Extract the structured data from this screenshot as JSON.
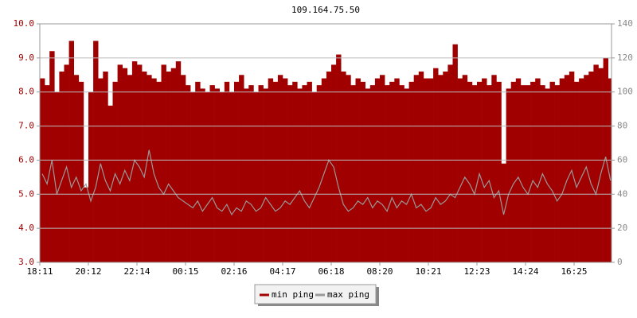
{
  "chart_data": {
    "type": "area",
    "title": "109.164.75.50",
    "categories": [
      "18:11",
      null,
      null,
      null,
      null,
      null,
      null,
      null,
      null,
      null,
      "20:12",
      null,
      null,
      null,
      null,
      null,
      null,
      null,
      null,
      null,
      "22:14",
      null,
      null,
      null,
      null,
      null,
      null,
      null,
      null,
      null,
      "00:15",
      null,
      null,
      null,
      null,
      null,
      null,
      null,
      null,
      null,
      "02:16",
      null,
      null,
      null,
      null,
      null,
      null,
      null,
      null,
      null,
      "04:17",
      null,
      null,
      null,
      null,
      null,
      null,
      null,
      null,
      null,
      "06:18",
      null,
      null,
      null,
      null,
      null,
      null,
      null,
      null,
      null,
      "08:20",
      null,
      null,
      null,
      null,
      null,
      null,
      null,
      null,
      null,
      "10:21",
      null,
      null,
      null,
      null,
      null,
      null,
      null,
      null,
      null,
      "12:23",
      null,
      null,
      null,
      null,
      null,
      null,
      null,
      null,
      null,
      "14:24",
      null,
      null,
      null,
      null,
      null,
      null,
      null,
      null,
      null,
      "16:25",
      null,
      null,
      null,
      null,
      null,
      null,
      null
    ],
    "series": [
      {
        "name": "min ping",
        "color": "#a00000",
        "values": [
          8.4,
          8.2,
          9.2,
          8.0,
          8.6,
          8.8,
          9.5,
          8.5,
          8.3,
          5.2,
          8.0,
          9.5,
          8.4,
          8.6,
          7.6,
          8.3,
          8.8,
          8.7,
          8.5,
          8.9,
          8.8,
          8.6,
          8.5,
          8.4,
          8.3,
          8.8,
          8.6,
          8.7,
          8.9,
          8.5,
          8.2,
          8.0,
          8.3,
          8.1,
          8.0,
          8.2,
          8.1,
          8.0,
          8.3,
          8.0,
          8.3,
          8.5,
          8.1,
          8.2,
          8.0,
          8.2,
          8.1,
          8.4,
          8.3,
          8.5,
          8.4,
          8.2,
          8.3,
          8.1,
          8.2,
          8.3,
          8.0,
          8.2,
          8.4,
          8.6,
          8.8,
          9.1,
          8.6,
          8.5,
          8.2,
          8.4,
          8.3,
          8.1,
          8.2,
          8.4,
          8.5,
          8.2,
          8.3,
          8.4,
          8.2,
          8.1,
          8.3,
          8.5,
          8.6,
          8.4,
          8.4,
          8.7,
          8.5,
          8.6,
          8.8,
          9.4,
          8.4,
          8.5,
          8.3,
          8.2,
          8.3,
          8.4,
          8.2,
          8.5,
          8.3,
          5.9,
          8.1,
          8.3,
          8.4,
          8.2,
          8.2,
          8.3,
          8.4,
          8.2,
          8.1,
          8.3,
          8.2,
          8.4,
          8.5,
          8.6,
          8.3,
          8.4,
          8.5,
          8.6,
          8.8,
          8.7,
          9.0,
          8.4
        ]
      },
      {
        "name": "max ping",
        "color": "#999999",
        "values": [
          5.6,
          5.3,
          6.0,
          5.0,
          5.4,
          5.8,
          5.2,
          5.5,
          5.1,
          5.3,
          4.8,
          5.2,
          5.9,
          5.4,
          5.1,
          5.6,
          5.3,
          5.7,
          5.4,
          6.0,
          5.8,
          5.5,
          6.3,
          5.6,
          5.2,
          5.0,
          5.3,
          5.1,
          4.9,
          4.8,
          4.7,
          4.6,
          4.8,
          4.5,
          4.7,
          4.9,
          4.6,
          4.5,
          4.7,
          4.4,
          4.6,
          4.5,
          4.8,
          4.7,
          4.5,
          4.6,
          4.9,
          4.7,
          4.5,
          4.6,
          4.8,
          4.7,
          4.9,
          5.1,
          4.8,
          4.6,
          4.9,
          5.2,
          5.6,
          6.0,
          5.8,
          5.2,
          4.7,
          4.5,
          4.6,
          4.8,
          4.7,
          4.9,
          4.6,
          4.8,
          4.7,
          4.5,
          4.9,
          4.6,
          4.8,
          4.7,
          5.0,
          4.6,
          4.7,
          4.5,
          4.6,
          4.9,
          4.7,
          4.8,
          5.0,
          4.9,
          5.2,
          5.5,
          5.3,
          5.0,
          5.6,
          5.2,
          5.4,
          4.9,
          5.1,
          4.4,
          5.0,
          5.3,
          5.5,
          5.2,
          5.0,
          5.4,
          5.2,
          5.6,
          5.3,
          5.1,
          4.8,
          5.0,
          5.4,
          5.7,
          5.2,
          5.5,
          5.8,
          5.3,
          5.0,
          5.6,
          6.1,
          5.4
        ]
      }
    ],
    "ylim": [
      3,
      10
    ],
    "yticks": [
      {
        "value": 3,
        "label": "3.0"
      },
      {
        "value": 4,
        "label": "4.0"
      },
      {
        "value": 5,
        "label": "5.0"
      },
      {
        "value": 6,
        "label": "6.0"
      },
      {
        "value": 7,
        "label": "7.0"
      },
      {
        "value": 8,
        "label": "8.0"
      },
      {
        "value": 9,
        "label": "9.0"
      },
      {
        "value": 10,
        "label": "10.0"
      }
    ],
    "y2lim": [
      0,
      140
    ],
    "y2ticks": [
      0,
      20,
      40,
      60,
      80,
      100,
      120,
      140
    ],
    "grid": true
  }
}
